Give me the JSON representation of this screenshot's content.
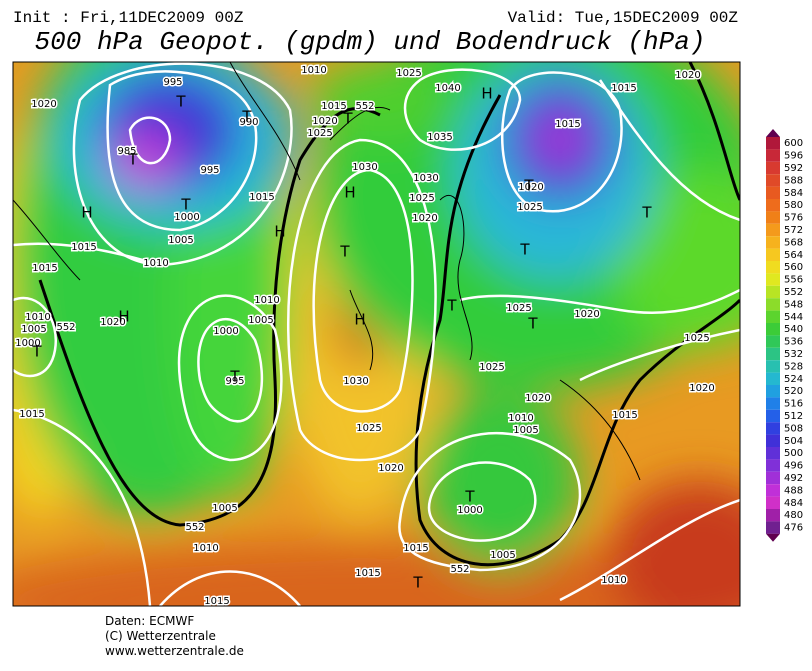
{
  "header": {
    "init": "Init : Fri,11DEC2009 00Z",
    "valid": "Valid: Tue,15DEC2009 00Z",
    "title": "500 hPa Geopot. (gpdm) und Bodendruck (hPa)"
  },
  "map": {
    "labels": [
      "995",
      "990",
      "995",
      "985",
      "1000",
      "1005",
      "1010",
      "1015",
      "1020",
      "1015",
      "1010",
      "1015",
      "1020",
      "1025",
      "1030",
      "1040",
      "1025",
      "1035",
      "1030",
      "1025",
      "1020",
      "1020",
      "1025",
      "1015",
      "1020",
      "1015",
      "1015",
      "1010",
      "1005",
      "1000",
      "1020",
      "1010",
      "1005",
      "1000",
      "995",
      "1015",
      "1030",
      "1025",
      "1020",
      "1005",
      "1010",
      "1015",
      "1015",
      "1025",
      "1025",
      "1020",
      "1020",
      "1010",
      "1005",
      "1000",
      "1005",
      "1010",
      "1015",
      "1020",
      "1025",
      "1015",
      "552",
      "552",
      "552",
      "552"
    ],
    "markers": [
      "T",
      "H",
      "T",
      "T",
      "T",
      "H",
      "T",
      "T",
      "H",
      "T",
      "H",
      "T",
      "H",
      "T",
      "T",
      "T",
      "T",
      "T",
      "T",
      "T",
      "H"
    ]
  },
  "colorbar": {
    "ticks": [
      600,
      596,
      592,
      588,
      584,
      580,
      576,
      572,
      568,
      564,
      560,
      556,
      552,
      548,
      544,
      540,
      536,
      532,
      528,
      524,
      520,
      516,
      512,
      508,
      504,
      500,
      496,
      492,
      488,
      484,
      480,
      476
    ]
  },
  "footer": [
    "Daten: ECMWF",
    "(C) Wetterzentrale",
    "www.wetterzentrale.de"
  ]
}
